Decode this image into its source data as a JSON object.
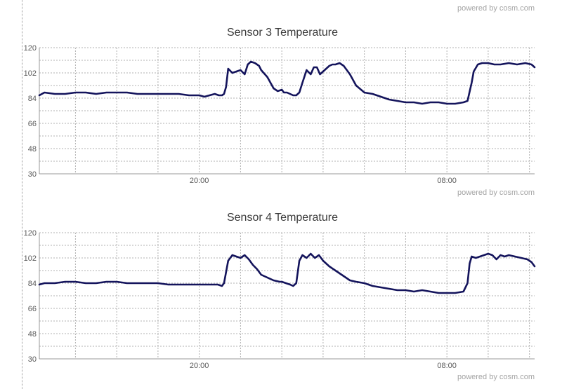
{
  "footer": {
    "powered_by": "powered by cosm.com"
  },
  "chart_data": [
    {
      "type": "line",
      "title": "Sensor 3 Temperature",
      "xlabel": "",
      "ylabel": "",
      "ylim": [
        30,
        120
      ],
      "yticks": [
        30,
        48,
        66,
        84,
        102,
        120
      ],
      "x_tick_labels": [
        {
          "label": "20:00",
          "position": 20
        },
        {
          "label": "08:00",
          "position": 32
        }
      ],
      "xlim": [
        12.25,
        36.25
      ],
      "grid": true,
      "line_color": "#14145c",
      "series": [
        {
          "x": [
            12.25,
            12.5,
            13,
            13.5,
            14,
            14.5,
            15,
            15.5,
            16,
            16.5,
            17,
            17.5,
            18,
            18.5,
            19,
            19.5,
            20,
            20.25,
            20.5,
            20.75,
            20.95,
            21.1,
            21.2,
            21.3,
            21.4,
            21.6,
            21.8,
            22,
            22.2,
            22.35,
            22.5,
            22.7,
            22.9,
            23,
            23.3,
            23.6,
            23.8,
            24,
            24.1,
            24.25,
            24.4,
            24.55,
            24.7,
            24.85,
            25,
            25.2,
            25.4,
            25.55,
            25.7,
            25.85,
            26,
            26.15,
            26.3,
            26.45,
            26.6,
            26.8,
            27,
            27.3,
            27.6,
            28,
            28.4,
            28.8,
            29.2,
            29.6,
            30,
            30.4,
            30.8,
            31.2,
            31.6,
            32,
            32.4,
            32.8,
            33,
            33.2,
            33.3,
            33.5,
            33.7,
            34,
            34.3,
            34.6,
            35,
            35.4,
            35.8,
            36.1,
            36.25
          ],
          "values": [
            86,
            88,
            87,
            87,
            88,
            88,
            87,
            88,
            88,
            88,
            87,
            87,
            87,
            87,
            87,
            86,
            86,
            85,
            86,
            87,
            86,
            86,
            87,
            92,
            105,
            102,
            103,
            104,
            101,
            108,
            110,
            109,
            107,
            104,
            99,
            91,
            89,
            90,
            88,
            88,
            87,
            86,
            86,
            88,
            95,
            104,
            101,
            106,
            106,
            101,
            103,
            105,
            107,
            108,
            108,
            109,
            107,
            101,
            93,
            88,
            87,
            85,
            83,
            82,
            81,
            81,
            80,
            81,
            81,
            80,
            80,
            81,
            82,
            95,
            103,
            108,
            109,
            109,
            108,
            108,
            109,
            108,
            109,
            108,
            106
          ]
        }
      ]
    },
    {
      "type": "line",
      "title": "Sensor 4 Temperature",
      "xlabel": "",
      "ylabel": "",
      "ylim": [
        30,
        120
      ],
      "yticks": [
        30,
        48,
        66,
        84,
        102,
        120
      ],
      "x_tick_labels": [
        {
          "label": "20:00",
          "position": 20
        },
        {
          "label": "08:00",
          "position": 32
        }
      ],
      "xlim": [
        12.25,
        36.25
      ],
      "grid": true,
      "line_color": "#14145c",
      "series": [
        {
          "x": [
            12.25,
            12.5,
            13,
            13.5,
            14,
            14.5,
            15,
            15.5,
            16,
            16.5,
            17,
            17.5,
            18,
            18.5,
            19,
            19.5,
            20,
            20.5,
            20.9,
            21.1,
            21.2,
            21.4,
            21.6,
            21.8,
            22,
            22.2,
            22.4,
            22.6,
            22.8,
            23,
            23.3,
            23.6,
            23.9,
            24,
            24.2,
            24.4,
            24.55,
            24.7,
            24.85,
            25,
            25.2,
            25.4,
            25.6,
            25.8,
            26,
            26.3,
            26.6,
            27,
            27.3,
            27.6,
            28,
            28.4,
            28.8,
            29.2,
            29.6,
            30,
            30.4,
            30.8,
            31.2,
            31.6,
            32,
            32.4,
            32.8,
            33,
            33.1,
            33.2,
            33.4,
            33.6,
            33.8,
            34,
            34.2,
            34.4,
            34.6,
            34.8,
            35,
            35.3,
            35.6,
            35.9,
            36.1,
            36.25
          ],
          "values": [
            83,
            84,
            84,
            85,
            85,
            84,
            84,
            85,
            85,
            84,
            84,
            84,
            84,
            83,
            83,
            83,
            83,
            83,
            83,
            82,
            84,
            100,
            104,
            103,
            102,
            104,
            101,
            97,
            94,
            90,
            88,
            86,
            85,
            85,
            84,
            83,
            82,
            84,
            100,
            104,
            102,
            105,
            102,
            104,
            100,
            96,
            93,
            89,
            86,
            85,
            84,
            82,
            81,
            80,
            79,
            79,
            78,
            79,
            78,
            77,
            77,
            77,
            78,
            84,
            98,
            103,
            102,
            103,
            104,
            105,
            104,
            101,
            104,
            103,
            104,
            103,
            102,
            101,
            99,
            96
          ]
        }
      ]
    }
  ]
}
